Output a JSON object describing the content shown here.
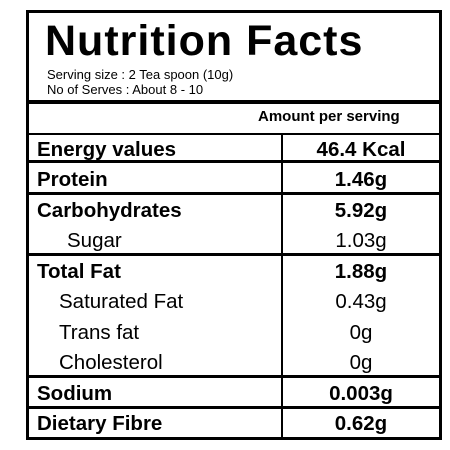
{
  "header": {
    "title": "Nutrition Facts",
    "serving_size": "Serving size : 2 Tea spoon (10g)",
    "serves": "No of Serves : About 8 - 10"
  },
  "table": {
    "column_header": "Amount per serving",
    "rows": [
      [
        "Energy values",
        "46.4 Kcal"
      ],
      [
        "Protein",
        "1.46g"
      ],
      [
        "Carbohydrates",
        "5.92g"
      ],
      [
        "Sugar",
        "1.03g"
      ],
      [
        "Total Fat",
        "1.88g"
      ],
      [
        "Saturated Fat",
        "0.43g"
      ],
      [
        "Trans fat",
        "0g"
      ],
      [
        "Cholesterol",
        "0g"
      ],
      [
        "Sodium",
        "0.003g"
      ],
      [
        "Dietary Fibre",
        "0.62g"
      ]
    ]
  }
}
